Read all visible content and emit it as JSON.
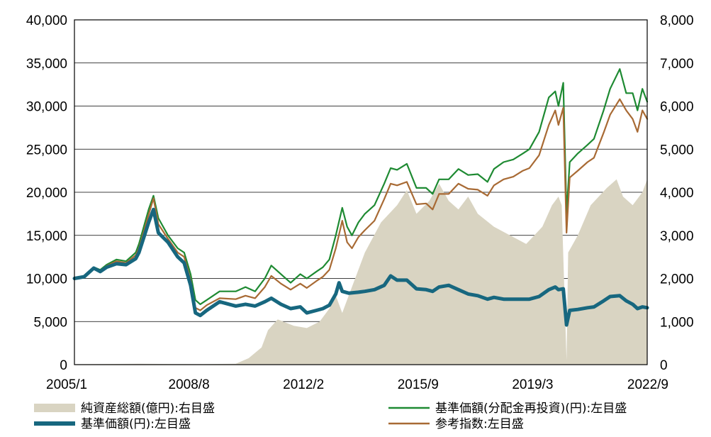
{
  "chart_data": {
    "type": "line",
    "title": "",
    "xlabel": "",
    "ylabel": "",
    "x_tick_labels": [
      "2005/1",
      "2008/8",
      "2012/2",
      "2015/9",
      "2019/3",
      "2022/9"
    ],
    "y_left_ticks": [
      "0",
      "5,000",
      "10,000",
      "15,000",
      "20,000",
      "25,000",
      "30,000",
      "35,000",
      "40,000"
    ],
    "y_right_ticks": [
      "0",
      "1,000",
      "2,000",
      "3,000",
      "4,000",
      "5,000",
      "6,000",
      "7,000",
      "8,000"
    ],
    "ylim_left": [
      0,
      40000
    ],
    "ylim_right": [
      0,
      8000
    ],
    "xlim": [
      2005.0,
      2022.75
    ],
    "grid": "horizontal",
    "legend_position": "bottom",
    "series": [
      {
        "name": "純資産総額(億円):右目盛",
        "type": "area",
        "axis": "right",
        "color": "#d9d4c2",
        "points": [
          [
            2005.0,
            10
          ],
          [
            2006.0,
            15
          ],
          [
            2007.0,
            20
          ],
          [
            2008.0,
            15
          ],
          [
            2009.0,
            12
          ],
          [
            2010.0,
            20
          ],
          [
            2010.4,
            150
          ],
          [
            2010.8,
            400
          ],
          [
            2011.0,
            800
          ],
          [
            2011.3,
            1050
          ],
          [
            2011.8,
            900
          ],
          [
            2012.2,
            850
          ],
          [
            2012.6,
            1000
          ],
          [
            2012.9,
            1300
          ],
          [
            2013.1,
            1600
          ],
          [
            2013.3,
            1200
          ],
          [
            2013.5,
            1600
          ],
          [
            2014.0,
            2600
          ],
          [
            2014.5,
            3300
          ],
          [
            2015.0,
            3700
          ],
          [
            2015.3,
            4050
          ],
          [
            2015.6,
            3500
          ],
          [
            2016.0,
            3800
          ],
          [
            2016.3,
            4200
          ],
          [
            2016.6,
            3800
          ],
          [
            2016.9,
            3600
          ],
          [
            2017.2,
            3900
          ],
          [
            2017.5,
            3500
          ],
          [
            2018.0,
            3200
          ],
          [
            2018.5,
            3000
          ],
          [
            2019.0,
            2800
          ],
          [
            2019.5,
            3200
          ],
          [
            2019.8,
            3700
          ],
          [
            2020.0,
            3900
          ],
          [
            2020.1,
            3700
          ],
          [
            2020.25,
            100
          ],
          [
            2020.3,
            2600
          ],
          [
            2020.6,
            3000
          ],
          [
            2021.0,
            3700
          ],
          [
            2021.5,
            4100
          ],
          [
            2021.8,
            4300
          ],
          [
            2022.0,
            3900
          ],
          [
            2022.3,
            3700
          ],
          [
            2022.6,
            4000
          ],
          [
            2022.75,
            4300
          ]
        ]
      },
      {
        "name": "基準価額(分配金再投資)(円):左目盛",
        "type": "line",
        "axis": "left",
        "color": "#1e8a32",
        "points": [
          [
            2005.0,
            10000
          ],
          [
            2005.3,
            10300
          ],
          [
            2005.6,
            11300
          ],
          [
            2005.8,
            11000
          ],
          [
            2006.0,
            11600
          ],
          [
            2006.3,
            12200
          ],
          [
            2006.6,
            12000
          ],
          [
            2006.9,
            13000
          ],
          [
            2007.0,
            14000
          ],
          [
            2007.3,
            18000
          ],
          [
            2007.45,
            19600
          ],
          [
            2007.6,
            17000
          ],
          [
            2007.9,
            15000
          ],
          [
            2008.2,
            13500
          ],
          [
            2008.4,
            13000
          ],
          [
            2008.6,
            10500
          ],
          [
            2008.75,
            7500
          ],
          [
            2008.9,
            7000
          ],
          [
            2009.1,
            7500
          ],
          [
            2009.5,
            8500
          ],
          [
            2010.0,
            8500
          ],
          [
            2010.3,
            9000
          ],
          [
            2010.6,
            8500
          ],
          [
            2010.9,
            10000
          ],
          [
            2011.1,
            11500
          ],
          [
            2011.4,
            10500
          ],
          [
            2011.7,
            9500
          ],
          [
            2012.0,
            10500
          ],
          [
            2012.2,
            10000
          ],
          [
            2012.5,
            10800
          ],
          [
            2012.7,
            11300
          ],
          [
            2012.9,
            12200
          ],
          [
            2013.1,
            15000
          ],
          [
            2013.3,
            18200
          ],
          [
            2013.45,
            16000
          ],
          [
            2013.6,
            15000
          ],
          [
            2013.8,
            16500
          ],
          [
            2014.0,
            17500
          ],
          [
            2014.3,
            18500
          ],
          [
            2014.6,
            21000
          ],
          [
            2014.8,
            22800
          ],
          [
            2015.0,
            22600
          ],
          [
            2015.3,
            23300
          ],
          [
            2015.6,
            20500
          ],
          [
            2015.9,
            20500
          ],
          [
            2016.1,
            19800
          ],
          [
            2016.3,
            21500
          ],
          [
            2016.6,
            21500
          ],
          [
            2016.9,
            22700
          ],
          [
            2017.2,
            22000
          ],
          [
            2017.5,
            22100
          ],
          [
            2017.8,
            21200
          ],
          [
            2018.0,
            22700
          ],
          [
            2018.3,
            23500
          ],
          [
            2018.6,
            23800
          ],
          [
            2018.9,
            24500
          ],
          [
            2019.1,
            25000
          ],
          [
            2019.4,
            27000
          ],
          [
            2019.7,
            31000
          ],
          [
            2019.9,
            31700
          ],
          [
            2020.0,
            30000
          ],
          [
            2020.15,
            32700
          ],
          [
            2020.25,
            17500
          ],
          [
            2020.35,
            23500
          ],
          [
            2020.6,
            24500
          ],
          [
            2020.9,
            25500
          ],
          [
            2021.1,
            26200
          ],
          [
            2021.4,
            29500
          ],
          [
            2021.6,
            32000
          ],
          [
            2021.9,
            34300
          ],
          [
            2022.1,
            31500
          ],
          [
            2022.3,
            31500
          ],
          [
            2022.45,
            29500
          ],
          [
            2022.6,
            32000
          ],
          [
            2022.75,
            30500
          ]
        ]
      },
      {
        "name": "基準価額(円):左目盛",
        "type": "line",
        "axis": "left",
        "color": "#17677f",
        "points": [
          [
            2005.0,
            10000
          ],
          [
            2005.3,
            10200
          ],
          [
            2005.6,
            11200
          ],
          [
            2005.8,
            10800
          ],
          [
            2006.0,
            11300
          ],
          [
            2006.3,
            11700
          ],
          [
            2006.6,
            11600
          ],
          [
            2006.9,
            12300
          ],
          [
            2007.0,
            13000
          ],
          [
            2007.3,
            16500
          ],
          [
            2007.45,
            18000
          ],
          [
            2007.6,
            15300
          ],
          [
            2007.9,
            14200
          ],
          [
            2008.2,
            12500
          ],
          [
            2008.4,
            11800
          ],
          [
            2008.6,
            9200
          ],
          [
            2008.75,
            6000
          ],
          [
            2008.9,
            5700
          ],
          [
            2009.1,
            6300
          ],
          [
            2009.5,
            7300
          ],
          [
            2010.0,
            6800
          ],
          [
            2010.3,
            7000
          ],
          [
            2010.6,
            6800
          ],
          [
            2010.9,
            7300
          ],
          [
            2011.1,
            7700
          ],
          [
            2011.4,
            7000
          ],
          [
            2011.7,
            6500
          ],
          [
            2012.0,
            6700
          ],
          [
            2012.2,
            6000
          ],
          [
            2012.5,
            6300
          ],
          [
            2012.7,
            6500
          ],
          [
            2012.9,
            6900
          ],
          [
            2013.1,
            8200
          ],
          [
            2013.2,
            9500
          ],
          [
            2013.3,
            8500
          ],
          [
            2013.5,
            8300
          ],
          [
            2013.8,
            8400
          ],
          [
            2014.0,
            8500
          ],
          [
            2014.3,
            8700
          ],
          [
            2014.6,
            9200
          ],
          [
            2014.8,
            10300
          ],
          [
            2015.0,
            9800
          ],
          [
            2015.3,
            9800
          ],
          [
            2015.6,
            8800
          ],
          [
            2015.9,
            8700
          ],
          [
            2016.1,
            8500
          ],
          [
            2016.3,
            9000
          ],
          [
            2016.6,
            9200
          ],
          [
            2016.9,
            8700
          ],
          [
            2017.2,
            8200
          ],
          [
            2017.5,
            8000
          ],
          [
            2017.8,
            7600
          ],
          [
            2018.0,
            7800
          ],
          [
            2018.3,
            7600
          ],
          [
            2018.6,
            7600
          ],
          [
            2018.9,
            7600
          ],
          [
            2019.1,
            7600
          ],
          [
            2019.4,
            7900
          ],
          [
            2019.7,
            8700
          ],
          [
            2019.9,
            9000
          ],
          [
            2020.0,
            8700
          ],
          [
            2020.15,
            8800
          ],
          [
            2020.25,
            4600
          ],
          [
            2020.35,
            6300
          ],
          [
            2020.6,
            6400
          ],
          [
            2020.9,
            6600
          ],
          [
            2021.1,
            6700
          ],
          [
            2021.4,
            7400
          ],
          [
            2021.6,
            7900
          ],
          [
            2021.9,
            8000
          ],
          [
            2022.1,
            7400
          ],
          [
            2022.3,
            7000
          ],
          [
            2022.45,
            6500
          ],
          [
            2022.6,
            6700
          ],
          [
            2022.75,
            6600
          ]
        ]
      },
      {
        "name": "参考指数:左目盛",
        "type": "line",
        "axis": "left",
        "color": "#a86a34",
        "points": [
          [
            2005.0,
            10100
          ],
          [
            2005.3,
            10250
          ],
          [
            2005.6,
            11250
          ],
          [
            2005.8,
            10900
          ],
          [
            2006.0,
            11450
          ],
          [
            2006.3,
            12000
          ],
          [
            2006.6,
            11800
          ],
          [
            2006.9,
            12700
          ],
          [
            2007.0,
            13500
          ],
          [
            2007.3,
            17400
          ],
          [
            2007.45,
            19300
          ],
          [
            2007.6,
            16300
          ],
          [
            2007.9,
            14600
          ],
          [
            2008.2,
            13000
          ],
          [
            2008.4,
            12500
          ],
          [
            2008.6,
            9800
          ],
          [
            2008.75,
            6600
          ],
          [
            2008.9,
            6300
          ],
          [
            2009.1,
            6900
          ],
          [
            2009.5,
            7700
          ],
          [
            2010.0,
            7600
          ],
          [
            2010.3,
            8000
          ],
          [
            2010.6,
            7700
          ],
          [
            2010.9,
            9000
          ],
          [
            2011.1,
            10300
          ],
          [
            2011.4,
            9400
          ],
          [
            2011.7,
            8700
          ],
          [
            2012.0,
            9400
          ],
          [
            2012.2,
            8900
          ],
          [
            2012.5,
            9700
          ],
          [
            2012.7,
            10200
          ],
          [
            2012.9,
            11000
          ],
          [
            2013.1,
            13500
          ],
          [
            2013.3,
            16700
          ],
          [
            2013.45,
            14200
          ],
          [
            2013.6,
            13500
          ],
          [
            2013.8,
            14800
          ],
          [
            2014.0,
            15600
          ],
          [
            2014.3,
            16700
          ],
          [
            2014.6,
            19200
          ],
          [
            2014.8,
            21000
          ],
          [
            2015.0,
            20800
          ],
          [
            2015.3,
            21200
          ],
          [
            2015.6,
            18600
          ],
          [
            2015.9,
            18700
          ],
          [
            2016.1,
            18000
          ],
          [
            2016.3,
            19800
          ],
          [
            2016.6,
            19800
          ],
          [
            2016.9,
            21000
          ],
          [
            2017.2,
            20400
          ],
          [
            2017.5,
            20300
          ],
          [
            2017.8,
            19600
          ],
          [
            2018.0,
            20800
          ],
          [
            2018.3,
            21500
          ],
          [
            2018.6,
            21800
          ],
          [
            2018.9,
            22500
          ],
          [
            2019.1,
            22800
          ],
          [
            2019.4,
            24300
          ],
          [
            2019.7,
            27800
          ],
          [
            2019.9,
            29500
          ],
          [
            2020.0,
            27800
          ],
          [
            2020.15,
            29800
          ],
          [
            2020.25,
            15300
          ],
          [
            2020.35,
            21700
          ],
          [
            2020.6,
            22500
          ],
          [
            2020.9,
            23500
          ],
          [
            2021.1,
            24000
          ],
          [
            2021.4,
            26900
          ],
          [
            2021.6,
            29000
          ],
          [
            2021.9,
            30800
          ],
          [
            2022.1,
            29500
          ],
          [
            2022.3,
            28500
          ],
          [
            2022.45,
            27000
          ],
          [
            2022.6,
            29500
          ],
          [
            2022.75,
            28500
          ]
        ]
      }
    ],
    "legend": [
      {
        "label": "純資産総額(億円):右目盛",
        "style": "area",
        "color": "#d9d4c2"
      },
      {
        "label": "基準価額(分配金再投資)(円):左目盛",
        "style": "line",
        "color": "#1e8a32"
      },
      {
        "label": "基準価額(円):左目盛",
        "style": "thick-line",
        "color": "#17677f"
      },
      {
        "label": "参考指数:左目盛",
        "style": "line",
        "color": "#a86a34"
      }
    ]
  }
}
